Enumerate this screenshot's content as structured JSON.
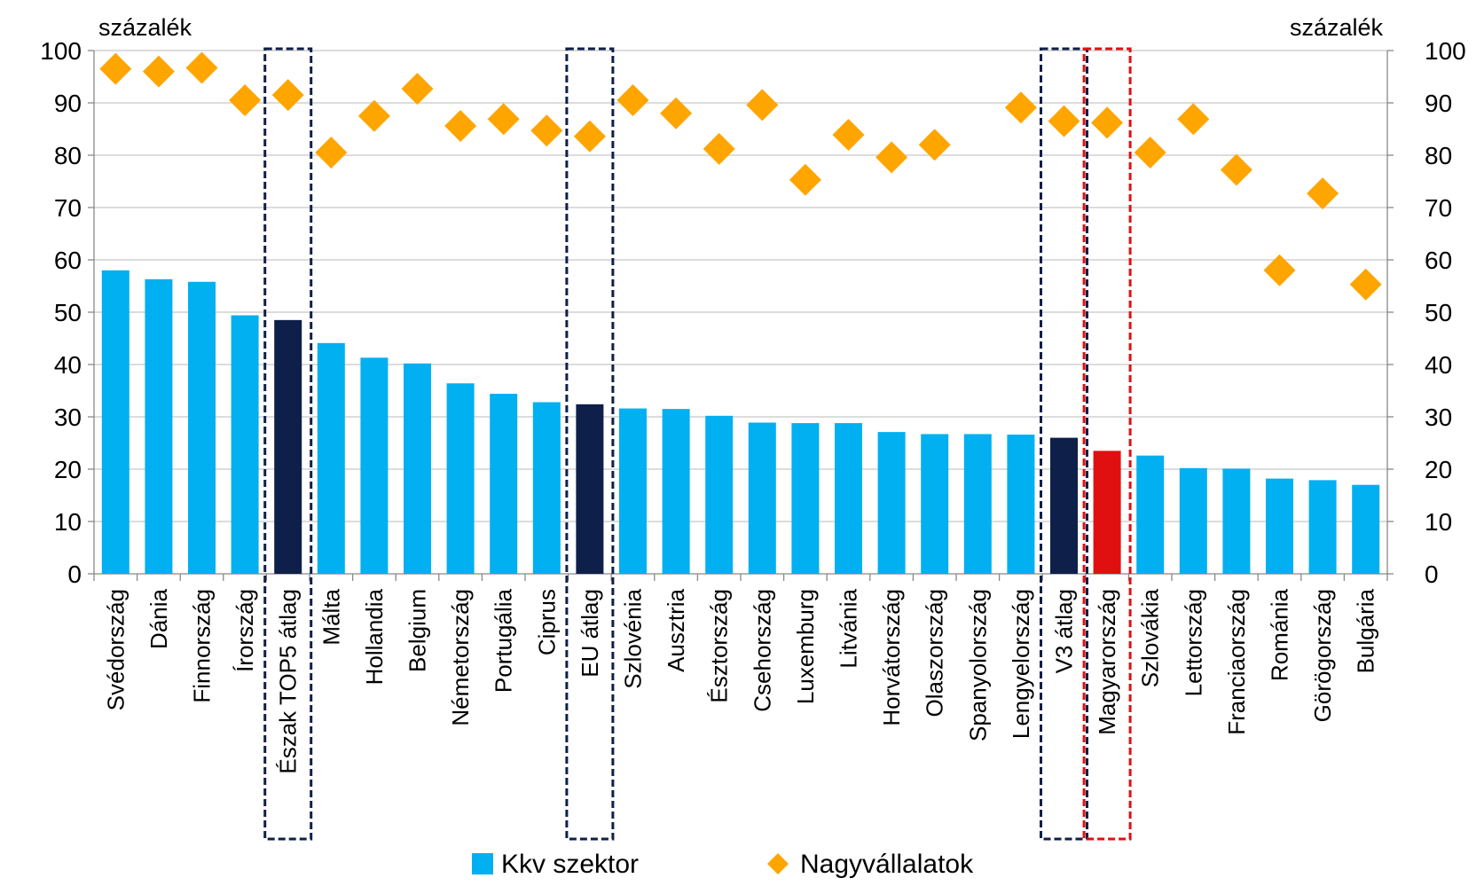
{
  "chart_data": {
    "type": "bar",
    "y_unit_left": "százalék",
    "y_unit_right": "százalék",
    "ylim": [
      0,
      100
    ],
    "yticks": [
      0,
      10,
      20,
      30,
      40,
      50,
      60,
      70,
      80,
      90,
      100
    ],
    "grid": true,
    "legend_position": "bottom",
    "categories": [
      "Svédország",
      "Dánia",
      "Finnország",
      "Írország",
      "Észak TOP5 átlag",
      "Málta",
      "Hollandia",
      "Belgium",
      "Németország",
      "Portugália",
      "Ciprus",
      "EU átlag",
      "Szlovénia",
      "Ausztria",
      "Észtország",
      "Csehország",
      "Luxemburg",
      "Litvánia",
      "Horvátország",
      "Olaszország",
      "Spanyolország",
      "Lengyelország",
      "V3 átlag",
      "Magyarország",
      "Szlovákia",
      "Lettország",
      "Franciaország",
      "Románia",
      "Görögország",
      "Bulgária"
    ],
    "series": [
      {
        "name": "Kkv szektor",
        "type": "bar",
        "color": "#00b0f0",
        "values": [
          58.0,
          56.3,
          55.8,
          49.4,
          48.5,
          44.1,
          41.3,
          40.2,
          36.4,
          34.4,
          32.8,
          32.4,
          31.6,
          31.5,
          30.2,
          28.9,
          28.8,
          28.8,
          27.1,
          26.7,
          26.7,
          26.6,
          26.0,
          23.5,
          22.6,
          20.2,
          20.1,
          18.2,
          17.9,
          17.0
        ]
      },
      {
        "name": "Nagyvállalatok",
        "type": "scatter",
        "marker": "diamond",
        "color": "#ffa500",
        "values": [
          96.5,
          96.0,
          96.7,
          90.5,
          91.5,
          80.5,
          87.5,
          92.7,
          85.6,
          86.9,
          84.7,
          83.6,
          90.5,
          88.0,
          81.2,
          89.6,
          75.3,
          83.9,
          79.6,
          82.0,
          null,
          89.1,
          86.5,
          86.2,
          80.5,
          86.9,
          77.2,
          58.0,
          72.7,
          55.3
        ]
      }
    ],
    "highlight_colors": {
      "average_bar": "#0e1f4a",
      "hungary_bar": "#e01010",
      "average_box": "#0e1f4a",
      "hungary_box": "#e01010"
    },
    "dark_bars": [
      "Észak TOP5 átlag",
      "EU átlag",
      "V3 átlag"
    ],
    "red_bars": [
      "Magyarország"
    ],
    "boxed_dark": [
      "Észak TOP5 átlag",
      "EU átlag",
      "V3 átlag"
    ],
    "boxed_red": [
      "Magyarország"
    ]
  }
}
